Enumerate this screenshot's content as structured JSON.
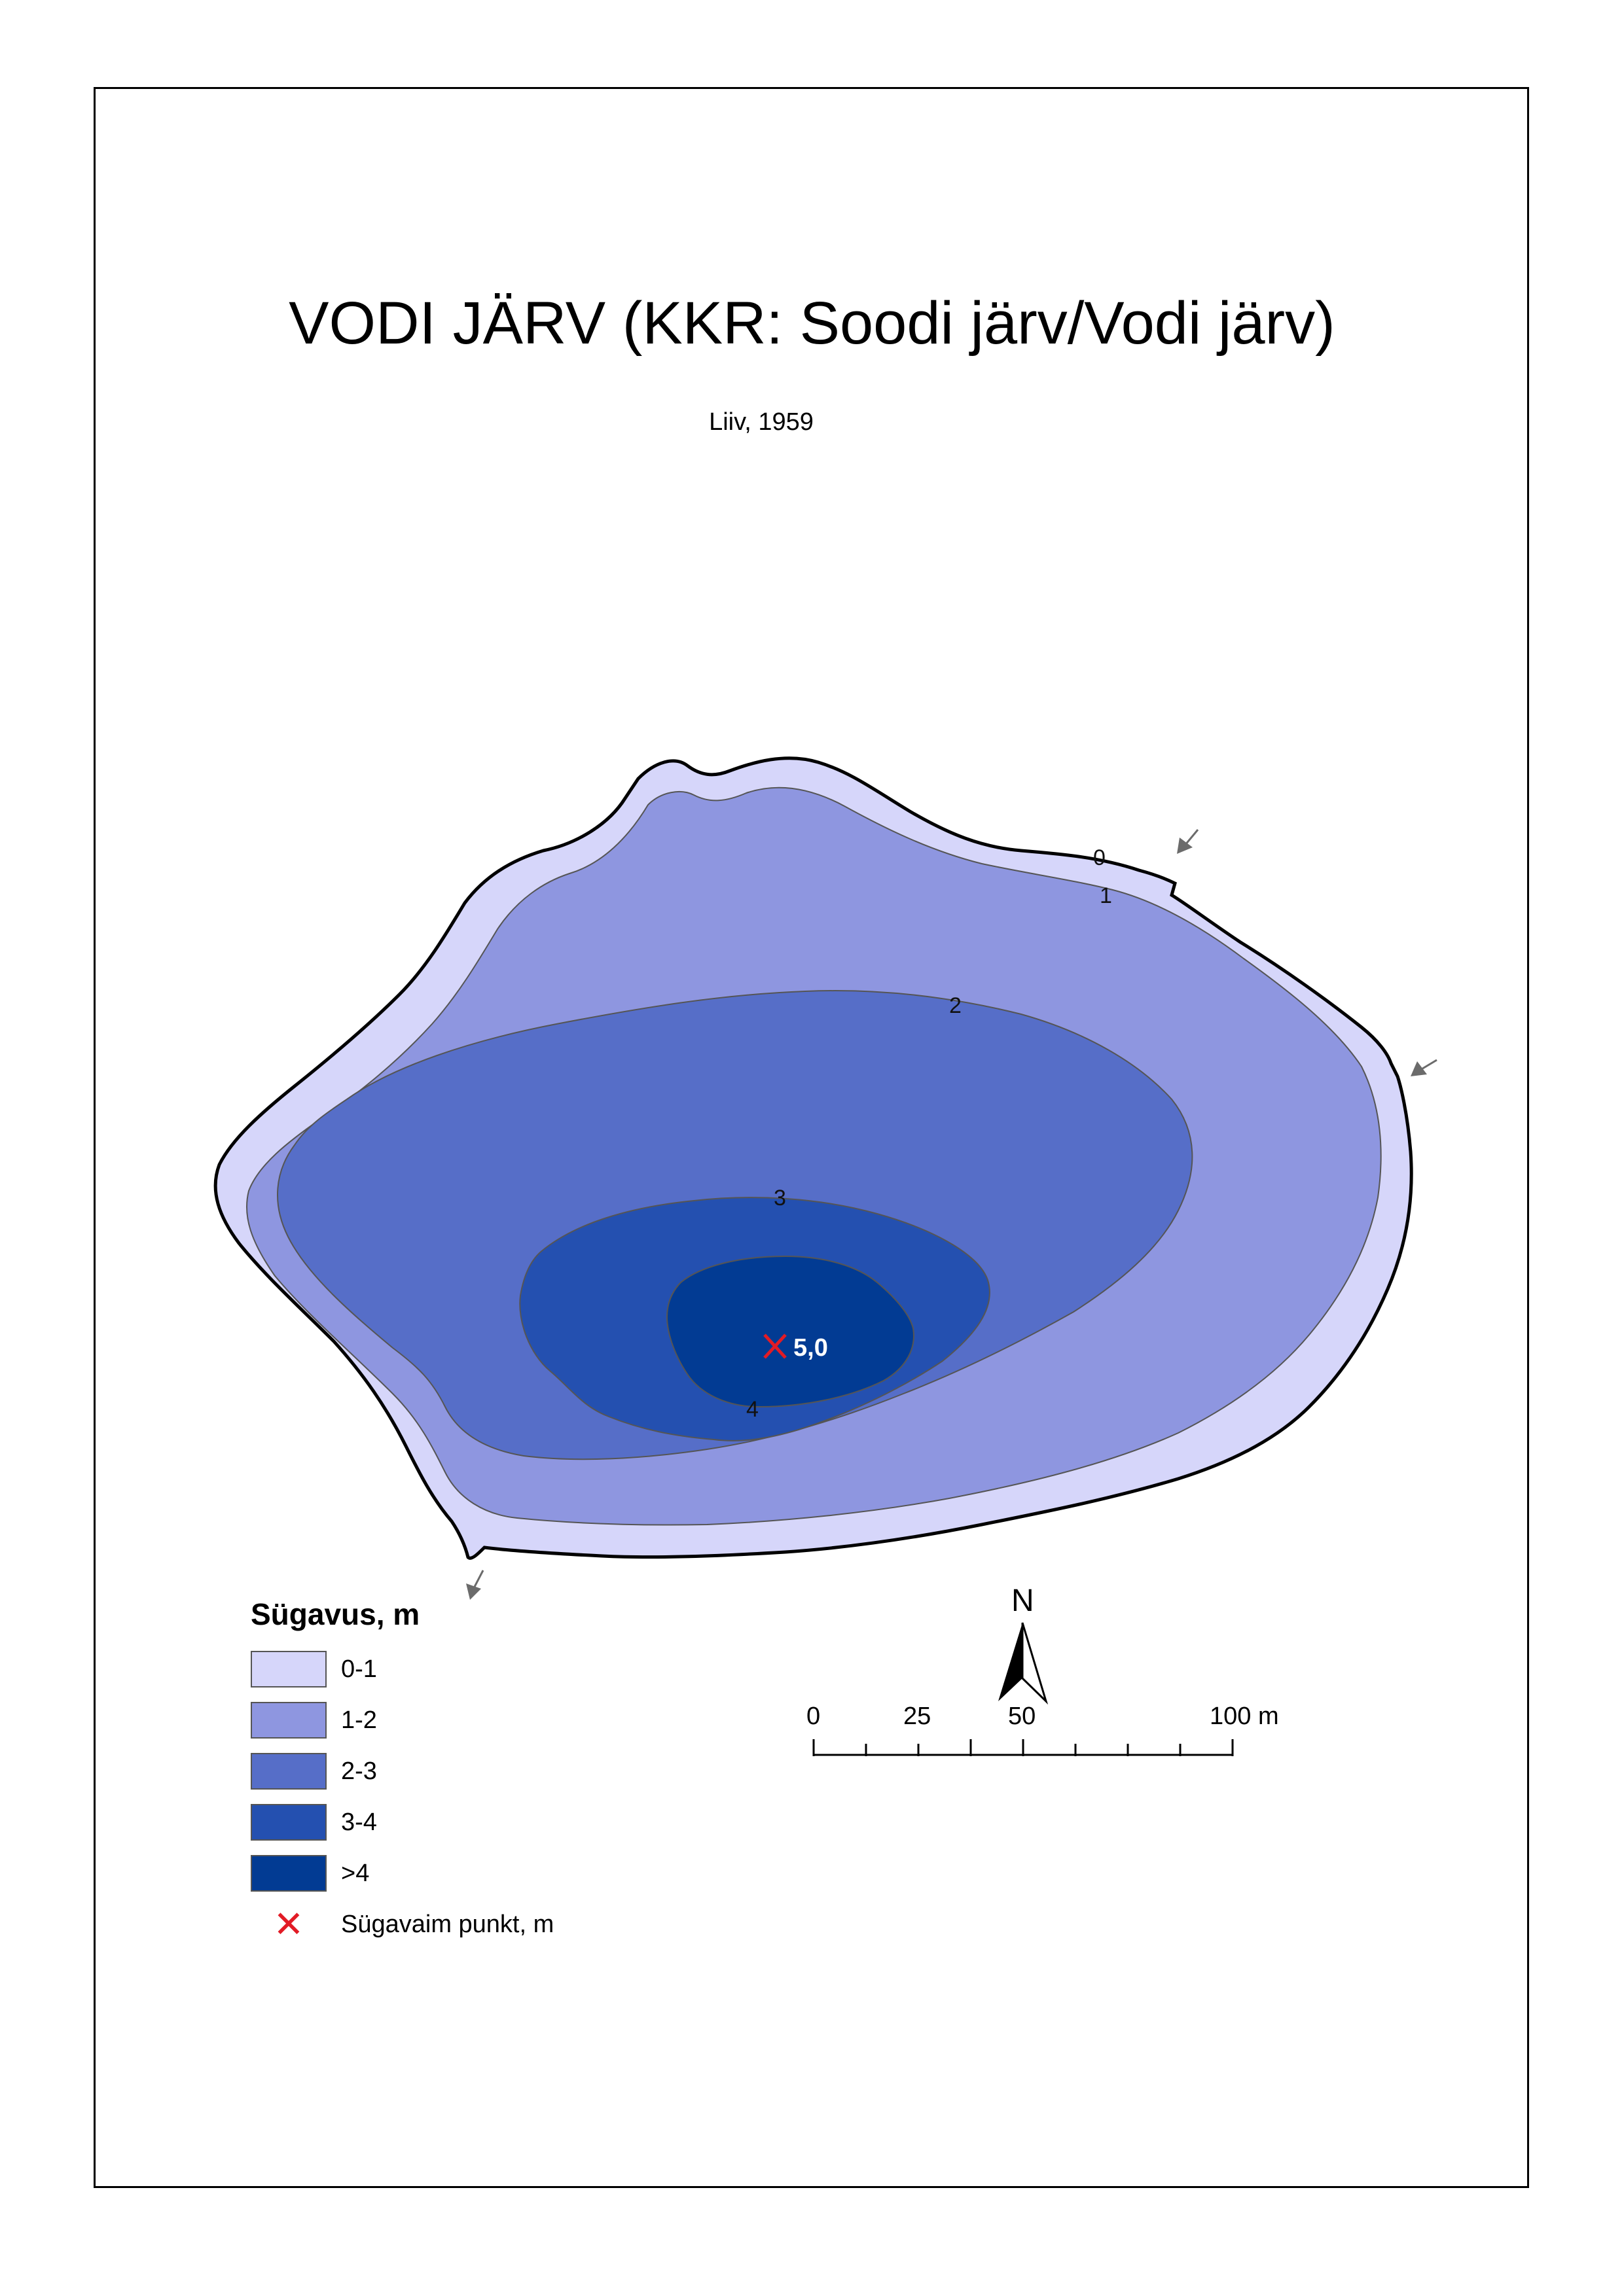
{
  "title": "VODI JÄRV (KKR: Soodi järv/Vodi järv)",
  "subtitle": "Liiv, 1959",
  "colors": {
    "depth_0_1": "#d6d6fa",
    "depth_1_2": "#8e96e0",
    "depth_2_3": "#566ec8",
    "depth_3_4": "#2450b0",
    "depth_gt4": "#023b93",
    "deepest_marker": "#e21b25",
    "flow_arrow": "#6b6b6b"
  },
  "contour_labels": [
    "0",
    "1",
    "2",
    "3",
    "4"
  ],
  "deepest_point": {
    "value_label": "5,0",
    "depth_m": 5.0
  },
  "legend": {
    "title": "Sügavus, m",
    "items": [
      {
        "label": "0-1",
        "color": "#d6d6fa"
      },
      {
        "label": "1-2",
        "color": "#8e96e0"
      },
      {
        "label": "2-3",
        "color": "#566ec8"
      },
      {
        "label": "3-4",
        "color": "#2450b0"
      },
      {
        "label": ">4",
        "color": "#023b93"
      }
    ],
    "marker_label": "Sügavaim punkt, m",
    "marker_icon": "red-x-icon"
  },
  "north_arrow": {
    "label": "N",
    "icon": "north-arrow-icon"
  },
  "scale_bar": {
    "ticks": [
      "0",
      "25",
      "50",
      "100 m"
    ],
    "tick_values_m": [
      0,
      25,
      50,
      100
    ]
  },
  "inflow_arrows": {
    "count": 3,
    "icon": "flow-arrow-icon"
  }
}
